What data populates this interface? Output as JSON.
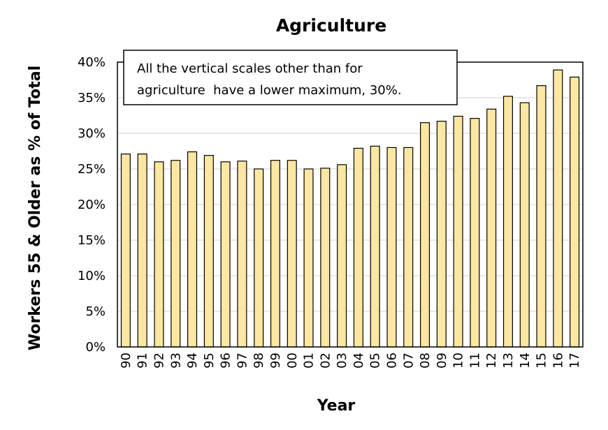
{
  "chart_data": {
    "type": "bar",
    "title": "Agriculture",
    "xlabel": "Year",
    "ylabel": "Workers 55 & Older as % of Total",
    "categories": [
      "90",
      "91",
      "92",
      "93",
      "94",
      "95",
      "96",
      "97",
      "98",
      "99",
      "00",
      "01",
      "02",
      "03",
      "04",
      "05",
      "06",
      "07",
      "08",
      "09",
      "10",
      "11",
      "12",
      "13",
      "14",
      "15",
      "16",
      "17"
    ],
    "values": [
      27.1,
      27.1,
      26.0,
      26.2,
      27.4,
      26.9,
      26.0,
      26.1,
      25.0,
      26.2,
      26.2,
      25.0,
      25.1,
      25.6,
      27.9,
      28.2,
      28.0,
      28.0,
      31.5,
      31.7,
      32.4,
      32.1,
      33.4,
      35.2,
      34.3,
      36.7,
      38.9,
      37.9
    ],
    "ylim": [
      0,
      40
    ],
    "ytick_step": 5,
    "ytick_labels": [
      "0%",
      "5%",
      "10%",
      "15%",
      "20%",
      "25%",
      "30%",
      "35%",
      "40%"
    ],
    "grid": true,
    "annotation_lines": [
      "All the vertical scales other than for",
      "agriculture  have a lower maximum, 30%."
    ],
    "colors": {
      "bar_fill": "#FBE7A1",
      "bar_stroke": "#000000",
      "grid": "#d9d9d9"
    }
  }
}
